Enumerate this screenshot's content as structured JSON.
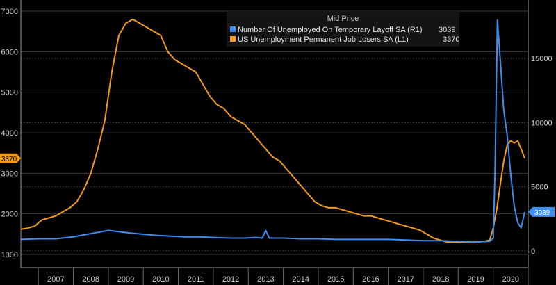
{
  "chart_data": {
    "type": "line",
    "title": "",
    "legend": {
      "title": "Mid Price",
      "placement": "top-right",
      "entries": [
        {
          "label": "Number Of Unemployed On Temporary Layoff SA  (R1)",
          "value": "3039",
          "color": "#3d8ef0"
        },
        {
          "label": "US Unemployment Permanent Job Losers SA  (L1)",
          "value": "3370",
          "color": "#f29b1d"
        }
      ]
    },
    "x_axis": {
      "ticks": [
        "2007",
        "2008",
        "2009",
        "2010",
        "2011",
        "2012",
        "2013",
        "2014",
        "2015",
        "2016",
        "2017",
        "2018",
        "2019",
        "2020"
      ],
      "range": [
        2006.5,
        2021.0
      ]
    },
    "left_axis": {
      "ticks": [
        "1000",
        "2000",
        "3000",
        "4000",
        "5000",
        "6000",
        "7000"
      ],
      "range": [
        1000,
        7000
      ],
      "last_value_label": "3370"
    },
    "right_axis": {
      "ticks": [
        "0",
        "5000",
        "10000",
        "15000"
      ],
      "range": [
        0,
        19000
      ],
      "last_value_label": "3039"
    },
    "grid": true,
    "series": [
      {
        "name": "US Unemployment Permanent Job Losers SA  (L1)",
        "axis": "left",
        "color": "#f29b1d",
        "x": [
          2006.5,
          2006.7,
          2006.9,
          2007.1,
          2007.3,
          2007.5,
          2007.7,
          2007.9,
          2008.1,
          2008.3,
          2008.5,
          2008.7,
          2008.9,
          2009.1,
          2009.3,
          2009.5,
          2009.7,
          2009.9,
          2010.1,
          2010.3,
          2010.5,
          2010.7,
          2010.9,
          2011.1,
          2011.3,
          2011.5,
          2011.7,
          2011.9,
          2012.1,
          2012.3,
          2012.5,
          2012.7,
          2012.9,
          2013.1,
          2013.3,
          2013.5,
          2013.7,
          2013.9,
          2014.1,
          2014.3,
          2014.5,
          2014.7,
          2014.9,
          2015.1,
          2015.3,
          2015.5,
          2015.7,
          2015.9,
          2016.1,
          2016.3,
          2016.5,
          2016.7,
          2016.9,
          2017.1,
          2017.3,
          2017.5,
          2017.7,
          2017.9,
          2018.1,
          2018.3,
          2018.5,
          2018.7,
          2018.9,
          2019.1,
          2019.3,
          2019.5,
          2019.7,
          2019.9,
          2020.0,
          2020.1,
          2020.2,
          2020.3,
          2020.4,
          2020.5,
          2020.6,
          2020.7,
          2020.8,
          2020.9
        ],
        "values": [
          1620,
          1650,
          1700,
          1850,
          1900,
          1950,
          2050,
          2150,
          2300,
          2600,
          3000,
          3600,
          4300,
          5500,
          6400,
          6700,
          6800,
          6700,
          6600,
          6500,
          6400,
          6000,
          5800,
          5700,
          5600,
          5500,
          5200,
          4900,
          4700,
          4600,
          4400,
          4300,
          4200,
          4000,
          3800,
          3600,
          3400,
          3300,
          3100,
          2900,
          2700,
          2500,
          2300,
          2200,
          2150,
          2150,
          2100,
          2050,
          2000,
          1950,
          1950,
          1900,
          1850,
          1800,
          1750,
          1700,
          1650,
          1600,
          1500,
          1400,
          1350,
          1300,
          1300,
          1300,
          1300,
          1300,
          1320,
          1350,
          1650,
          2100,
          2700,
          3300,
          3700,
          3800,
          3750,
          3800,
          3600,
          3370
        ]
      },
      {
        "name": "Number Of Unemployed On Temporary Layoff SA  (R1)",
        "axis": "right",
        "color": "#3d8ef0",
        "x": [
          2006.5,
          2007.0,
          2007.5,
          2008.0,
          2008.4,
          2008.8,
          2009.0,
          2009.3,
          2009.6,
          2010.0,
          2010.4,
          2010.8,
          2011.2,
          2011.6,
          2012.0,
          2012.5,
          2012.9,
          2013.2,
          2013.4,
          2013.5,
          2013.6,
          2014.0,
          2014.5,
          2015.0,
          2015.5,
          2016.0,
          2016.5,
          2017.0,
          2017.5,
          2018.0,
          2018.5,
          2019.0,
          2019.5,
          2019.9,
          2020.0,
          2020.05,
          2020.12,
          2020.2,
          2020.3,
          2020.4,
          2020.5,
          2020.6,
          2020.7,
          2020.8,
          2020.9
        ],
        "values": [
          900,
          950,
          950,
          1100,
          1300,
          1500,
          1600,
          1500,
          1400,
          1300,
          1200,
          1150,
          1100,
          1100,
          1050,
          1000,
          1000,
          1050,
          1000,
          1600,
          1000,
          1000,
          950,
          950,
          900,
          900,
          900,
          900,
          850,
          800,
          800,
          750,
          700,
          750,
          1000,
          6000,
          18000,
          15000,
          11000,
          9000,
          6000,
          3500,
          2200,
          1800,
          3039
        ]
      }
    ]
  }
}
